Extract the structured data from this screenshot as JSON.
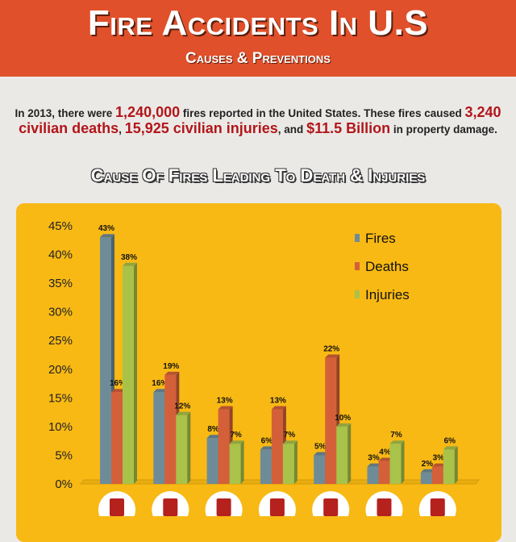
{
  "header": {
    "title": "Fire Accidents In U.S",
    "subtitle": "Causes & Preventions"
  },
  "intro": {
    "p1": "In 2013, there were ",
    "fires": "1,240,000",
    "p2": " fires reported in the United States. These fires caused ",
    "deaths": "3,240 civilian deaths",
    "p3": ", ",
    "injuries": "15,925 civilian injuries",
    "p4": ", and ",
    "damage": "$11.5 Billion",
    "p5": " in property damage."
  },
  "chart_data": {
    "type": "bar",
    "title": "Cause Of Fires Leading To Death & Injuries",
    "categories": [
      "cooking-stove-icon",
      "heating-stove-icon",
      "flame-torch-icon",
      "electrical-plug-icon",
      "smoking-icon",
      "candle-icon",
      "child-playing-icon"
    ],
    "series": [
      {
        "name": "Fires",
        "color": "#6e8c98",
        "values": [
          43,
          16,
          8,
          6,
          5,
          3,
          2
        ]
      },
      {
        "name": "Deaths",
        "color": "#d4603a",
        "values": [
          16,
          19,
          13,
          13,
          22,
          4,
          3
        ]
      },
      {
        "name": "Injuries",
        "color": "#a9c24a",
        "values": [
          38,
          12,
          7,
          7,
          10,
          7,
          6
        ]
      }
    ],
    "yticks": [
      "0%",
      "5%",
      "10%",
      "15%",
      "20%",
      "25%",
      "30%",
      "35%",
      "40%",
      "45%"
    ],
    "ylim": [
      0,
      45
    ],
    "legend": "top-right",
    "grid": false
  },
  "colors": {
    "header": "#e0502a",
    "panel": "#f8b914",
    "highlight": "#b2161a",
    "icon": "#b5211c"
  }
}
